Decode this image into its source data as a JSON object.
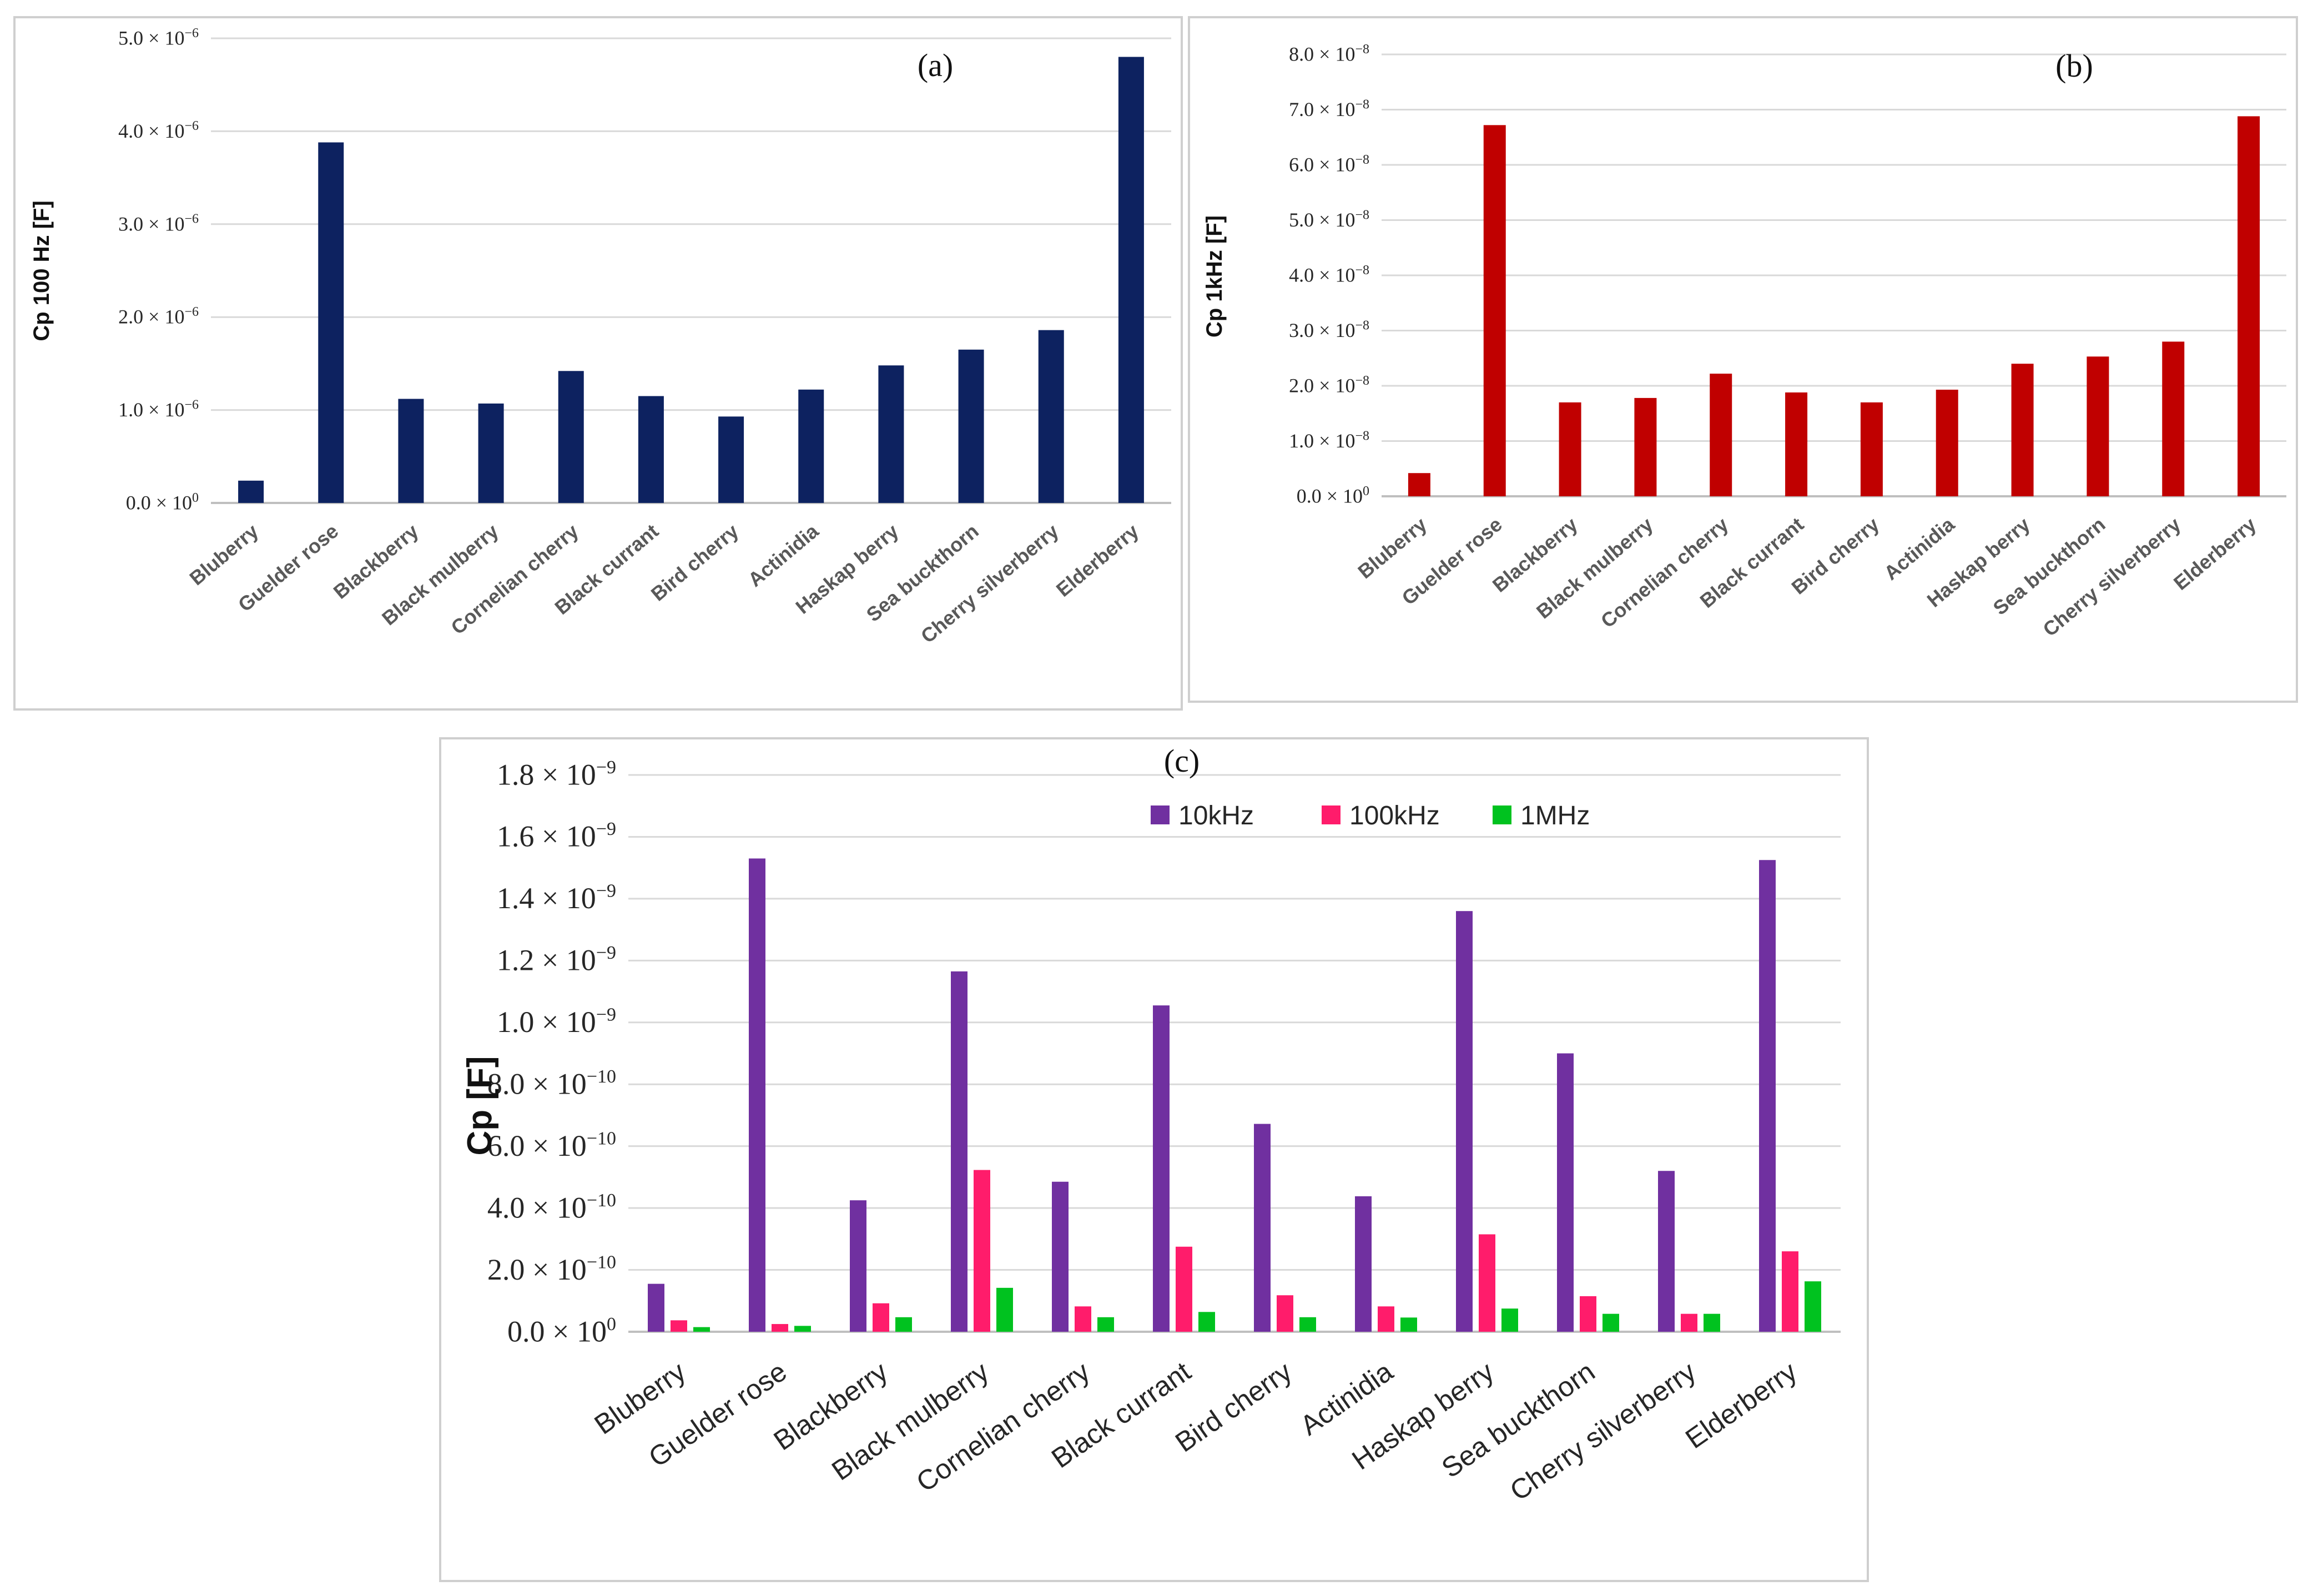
{
  "chart_data": [
    {
      "type": "bar",
      "panel_label": "(a)",
      "ylabel": "Cp 100 Hz [F]",
      "categories": [
        "Bluberry",
        "Guelder rose",
        "Blackberry",
        "Black mulberry",
        "Cornelian cherry",
        "Black currant",
        "Bird cherry",
        "Actinidia",
        "Haskap berry",
        "Sea buckthorn",
        "Cherry silverberry",
        "Elderberry"
      ],
      "ticks": [
        {
          "v": 0,
          "m": "0.0 × 10",
          "e": "0"
        },
        {
          "v": 1e-06,
          "m": "1.0 × 10",
          "e": "−6"
        },
        {
          "v": 2e-06,
          "m": "2.0 × 10",
          "e": "−6"
        },
        {
          "v": 3e-06,
          "m": "3.0 × 10",
          "e": "−6"
        },
        {
          "v": 4e-06,
          "m": "4.0 × 10",
          "e": "−6"
        },
        {
          "v": 5e-06,
          "m": "5.0 × 10",
          "e": "−6"
        }
      ],
      "ylim": [
        0,
        5e-06
      ],
      "grid": true,
      "color": "#0d2260",
      "series": [
        {
          "values": [
            2.4e-07,
            3.88e-06,
            1.12e-06,
            1.07e-06,
            1.42e-06,
            1.15e-06,
            9.3e-07,
            1.22e-06,
            1.48e-06,
            1.65e-06,
            1.86e-06,
            4.8e-06
          ]
        }
      ]
    },
    {
      "type": "bar",
      "panel_label": "(b)",
      "ylabel": "Cp 1kHz [F]",
      "categories": [
        "Bluberry",
        "Guelder rose",
        "Blackberry",
        "Black mulberry",
        "Cornelian cherry",
        "Black currant",
        "Bird cherry",
        "Actinidia",
        "Haskap berry",
        "Sea buckthorn",
        "Cherry silverberry",
        "Elderberry"
      ],
      "ticks": [
        {
          "v": 0,
          "m": "0.0 × 10",
          "e": "0"
        },
        {
          "v": 1e-08,
          "m": "1.0 × 10",
          "e": "−8"
        },
        {
          "v": 2e-08,
          "m": "2.0 × 10",
          "e": "−8"
        },
        {
          "v": 3e-08,
          "m": "3.0 × 10",
          "e": "−8"
        },
        {
          "v": 4e-08,
          "m": "4.0 × 10",
          "e": "−8"
        },
        {
          "v": 5e-08,
          "m": "5.0 × 10",
          "e": "−8"
        },
        {
          "v": 6e-08,
          "m": "6.0 × 10",
          "e": "−8"
        },
        {
          "v": 7e-08,
          "m": "7.0 × 10",
          "e": "−8"
        },
        {
          "v": 8e-08,
          "m": "8.0 × 10",
          "e": "−8"
        }
      ],
      "ylim": [
        0,
        8e-08
      ],
      "grid": true,
      "color": "#c00000",
      "series": [
        {
          "values": [
            4.2e-09,
            6.72e-08,
            1.7e-08,
            1.78e-08,
            2.22e-08,
            1.88e-08,
            1.7e-08,
            1.93e-08,
            2.4e-08,
            2.53e-08,
            2.8e-08,
            6.88e-08
          ]
        }
      ]
    },
    {
      "type": "bar",
      "panel_label": "(c)",
      "ylabel": "Cp [F]",
      "categories": [
        "Bluberry",
        "Guelder rose",
        "Blackberry",
        "Black mulberry",
        "Cornelian cherry",
        "Black currant",
        "Bird cherry",
        "Actinidia",
        "Haskap berry",
        "Sea buckthorn",
        "Cherry silverberry",
        "Elderberry"
      ],
      "ticks": [
        {
          "v": 0,
          "m": "0.0 × 10",
          "e": "0"
        },
        {
          "v": 2e-10,
          "m": "2.0 × 10",
          "e": "−10"
        },
        {
          "v": 4e-10,
          "m": "4.0 × 10",
          "e": "−10"
        },
        {
          "v": 6e-10,
          "m": "6.0 × 10",
          "e": "−10"
        },
        {
          "v": 8e-10,
          "m": "8.0 × 10",
          "e": "−10"
        },
        {
          "v": 1e-09,
          "m": "1.0 × 10",
          "e": "−9"
        },
        {
          "v": 1.2e-09,
          "m": "1.2 × 10",
          "e": "−9"
        },
        {
          "v": 1.4e-09,
          "m": "1.4 × 10",
          "e": "−9"
        },
        {
          "v": 1.6e-09,
          "m": "1.6 × 10",
          "e": "−9"
        },
        {
          "v": 1.8e-09,
          "m": "1.8 × 10",
          "e": "−9"
        }
      ],
      "ylim": [
        0,
        1.8e-09
      ],
      "grid": true,
      "legend": "top-right",
      "series": [
        {
          "name": "10kHz",
          "color": "#7030a0",
          "values": [
            1.55e-10,
            1.53e-09,
            4.25e-10,
            1.165e-09,
            4.85e-10,
            1.055e-09,
            6.72e-10,
            4.38e-10,
            1.36e-09,
            9e-10,
            5.2e-10,
            1.525e-09
          ]
        },
        {
          "name": "100kHz",
          "color": "#ff1c6b",
          "values": [
            3.7e-11,
            2.5e-11,
            9.2e-11,
            5.23e-10,
            8.2e-11,
            2.75e-10,
            1.18e-10,
            8.2e-11,
            3.15e-10,
            1.15e-10,
            5.8e-11,
            2.6e-10
          ]
        },
        {
          "name": "1MHz",
          "color": "#00c21f",
          "values": [
            1.5e-11,
            1.9e-11,
            4.7e-11,
            1.42e-10,
            4.7e-11,
            6.4e-11,
            4.7e-11,
            4.6e-11,
            7.5e-11,
            5.8e-11,
            5.8e-11,
            1.63e-10
          ]
        }
      ]
    }
  ]
}
